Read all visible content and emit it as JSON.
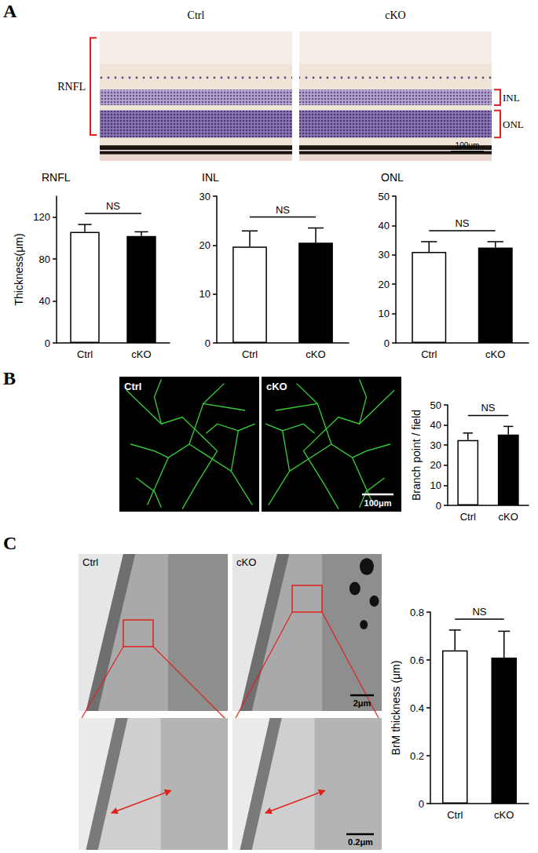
{
  "figure": {
    "panels": [
      {
        "label": "A",
        "image_titles": [
          "Ctrl",
          "cKO"
        ],
        "scale_bar": "100μm",
        "layer_labels": [
          "RNFL",
          "INL",
          "ONL"
        ]
      },
      {
        "label": "B",
        "image_titles": [
          "Ctrl",
          "cKO"
        ],
        "scale_bar": "100μm"
      },
      {
        "label": "C",
        "image_titles": [
          "Ctrl",
          "cKO"
        ],
        "scale_bar": "2μm",
        "zoom_scale_bar": "0.2μm"
      }
    ]
  },
  "chart_data": [
    {
      "type": "bar",
      "title": "RNFL",
      "ylabel": "Thickness(μm)",
      "categories": [
        "Ctrl",
        "cKO"
      ],
      "values": [
        106,
        102
      ],
      "errors": [
        7,
        4
      ],
      "colors": [
        "#ffffff",
        "#000000"
      ],
      "annotation": "NS",
      "ylim": [
        0,
        140
      ],
      "yticks": [
        0,
        40,
        80,
        120
      ]
    },
    {
      "type": "bar",
      "title": "INL",
      "categories": [
        "Ctrl",
        "cKO"
      ],
      "values": [
        19.7,
        20.5
      ],
      "errors": [
        3.2,
        3.0
      ],
      "colors": [
        "#ffffff",
        "#000000"
      ],
      "annotation": "NS",
      "ylim": [
        0,
        30
      ],
      "yticks": [
        0,
        10,
        20,
        30
      ]
    },
    {
      "type": "bar",
      "title": "ONL",
      "categories": [
        "Ctrl",
        "cKO"
      ],
      "values": [
        31,
        32.5
      ],
      "errors": [
        3.5,
        2
      ],
      "colors": [
        "#ffffff",
        "#000000"
      ],
      "annotation": "NS",
      "ylim": [
        0,
        50
      ],
      "yticks": [
        0,
        10,
        20,
        30,
        40,
        50
      ]
    },
    {
      "type": "bar",
      "ylabel": "Branch point / field",
      "categories": [
        "Ctrl",
        "cKO"
      ],
      "values": [
        32.5,
        35.3
      ],
      "errors": [
        3.5,
        4
      ],
      "colors": [
        "#ffffff",
        "#000000"
      ],
      "annotation": "NS",
      "ylim": [
        0,
        50
      ],
      "yticks": [
        0,
        10,
        20,
        30,
        40,
        50
      ]
    },
    {
      "type": "bar",
      "ylabel": "BrM thickness (μm)",
      "categories": [
        "Ctrl",
        "cKO"
      ],
      "values": [
        0.64,
        0.61
      ],
      "errors": [
        0.085,
        0.11
      ],
      "colors": [
        "#ffffff",
        "#000000"
      ],
      "annotation": "NS",
      "ylim": [
        0,
        0.8
      ],
      "yticks": [
        0,
        0.2,
        0.4,
        0.6,
        0.8
      ]
    }
  ]
}
